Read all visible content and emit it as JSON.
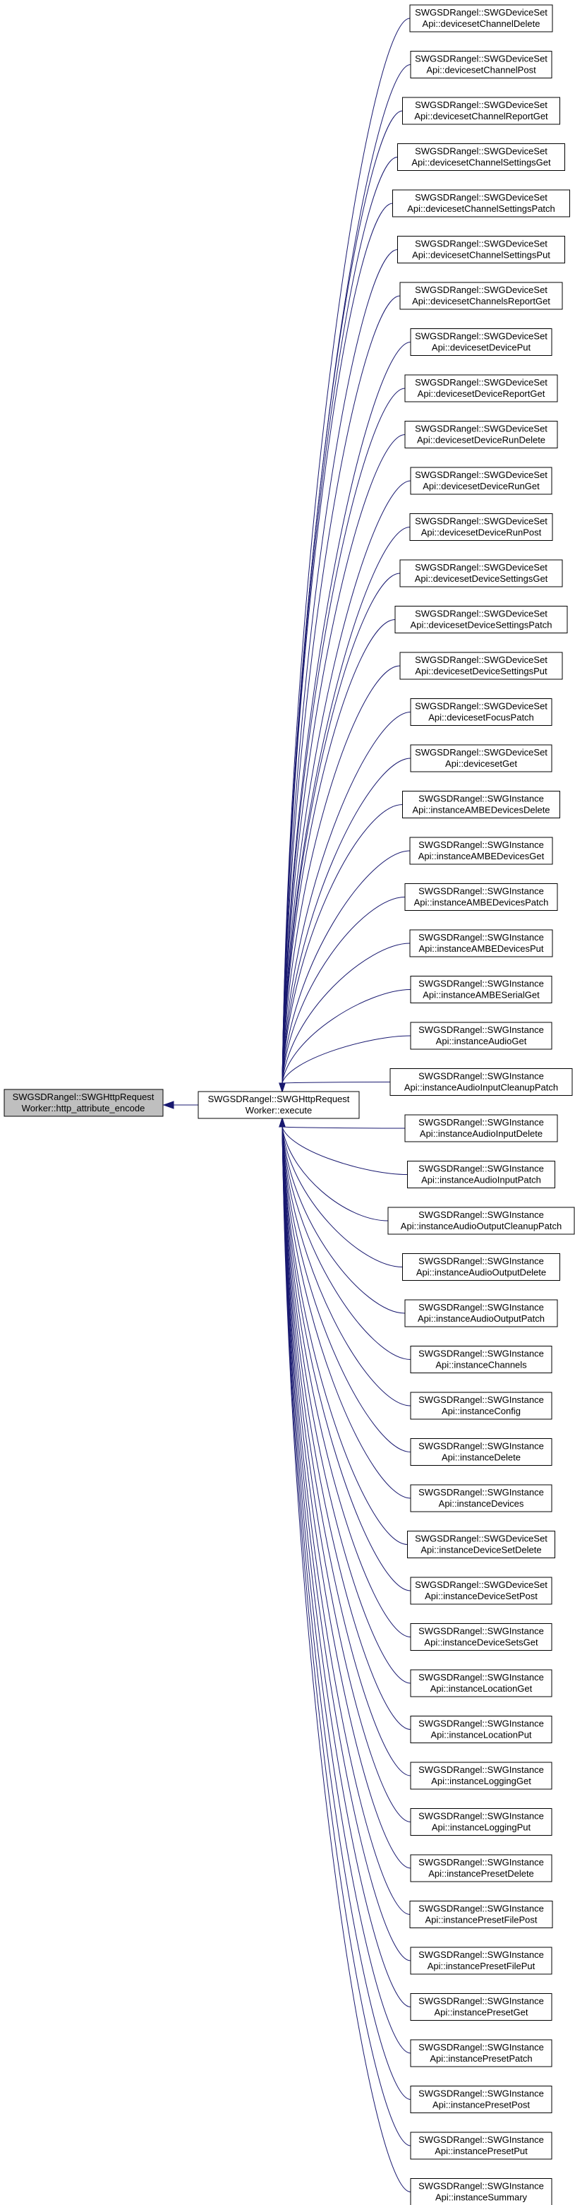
{
  "colors": {
    "edge": "#191970",
    "node_fill": "#ffffff",
    "highlight_fill": "#bfbfbf",
    "border": "#000000"
  },
  "focus_node": {
    "line1": "SWGSDRangel::SWGHttpRequest",
    "line2": "Worker::http_attribute_encode"
  },
  "center_node": {
    "line1": "SWGSDRangel::SWGHttpRequest",
    "line2": "Worker::execute"
  },
  "callers": [
    {
      "line1": "SWGSDRangel::SWGDeviceSet",
      "line2": "Api::devicesetChannelDelete"
    },
    {
      "line1": "SWGSDRangel::SWGDeviceSet",
      "line2": "Api::devicesetChannelPost"
    },
    {
      "line1": "SWGSDRangel::SWGDeviceSet",
      "line2": "Api::devicesetChannelReportGet"
    },
    {
      "line1": "SWGSDRangel::SWGDeviceSet",
      "line2": "Api::devicesetChannelSettingsGet"
    },
    {
      "line1": "SWGSDRangel::SWGDeviceSet",
      "line2": "Api::devicesetChannelSettingsPatch"
    },
    {
      "line1": "SWGSDRangel::SWGDeviceSet",
      "line2": "Api::devicesetChannelSettingsPut"
    },
    {
      "line1": "SWGSDRangel::SWGDeviceSet",
      "line2": "Api::devicesetChannelsReportGet"
    },
    {
      "line1": "SWGSDRangel::SWGDeviceSet",
      "line2": "Api::devicesetDevicePut"
    },
    {
      "line1": "SWGSDRangel::SWGDeviceSet",
      "line2": "Api::devicesetDeviceReportGet"
    },
    {
      "line1": "SWGSDRangel::SWGDeviceSet",
      "line2": "Api::devicesetDeviceRunDelete"
    },
    {
      "line1": "SWGSDRangel::SWGDeviceSet",
      "line2": "Api::devicesetDeviceRunGet"
    },
    {
      "line1": "SWGSDRangel::SWGDeviceSet",
      "line2": "Api::devicesetDeviceRunPost"
    },
    {
      "line1": "SWGSDRangel::SWGDeviceSet",
      "line2": "Api::devicesetDeviceSettingsGet"
    },
    {
      "line1": "SWGSDRangel::SWGDeviceSet",
      "line2": "Api::devicesetDeviceSettingsPatch"
    },
    {
      "line1": "SWGSDRangel::SWGDeviceSet",
      "line2": "Api::devicesetDeviceSettingsPut"
    },
    {
      "line1": "SWGSDRangel::SWGDeviceSet",
      "line2": "Api::devicesetFocusPatch"
    },
    {
      "line1": "SWGSDRangel::SWGDeviceSet",
      "line2": "Api::devicesetGet"
    },
    {
      "line1": "SWGSDRangel::SWGInstance",
      "line2": "Api::instanceAMBEDevicesDelete"
    },
    {
      "line1": "SWGSDRangel::SWGInstance",
      "line2": "Api::instanceAMBEDevicesGet"
    },
    {
      "line1": "SWGSDRangel::SWGInstance",
      "line2": "Api::instanceAMBEDevicesPatch"
    },
    {
      "line1": "SWGSDRangel::SWGInstance",
      "line2": "Api::instanceAMBEDevicesPut"
    },
    {
      "line1": "SWGSDRangel::SWGInstance",
      "line2": "Api::instanceAMBESerialGet"
    },
    {
      "line1": "SWGSDRangel::SWGInstance",
      "line2": "Api::instanceAudioGet"
    },
    {
      "line1": "SWGSDRangel::SWGInstance",
      "line2": "Api::instanceAudioInputCleanupPatch"
    },
    {
      "line1": "SWGSDRangel::SWGInstance",
      "line2": "Api::instanceAudioInputDelete"
    },
    {
      "line1": "SWGSDRangel::SWGInstance",
      "line2": "Api::instanceAudioInputPatch"
    },
    {
      "line1": "SWGSDRangel::SWGInstance",
      "line2": "Api::instanceAudioOutputCleanupPatch"
    },
    {
      "line1": "SWGSDRangel::SWGInstance",
      "line2": "Api::instanceAudioOutputDelete"
    },
    {
      "line1": "SWGSDRangel::SWGInstance",
      "line2": "Api::instanceAudioOutputPatch"
    },
    {
      "line1": "SWGSDRangel::SWGInstance",
      "line2": "Api::instanceChannels"
    },
    {
      "line1": "SWGSDRangel::SWGInstance",
      "line2": "Api::instanceConfig"
    },
    {
      "line1": "SWGSDRangel::SWGInstance",
      "line2": "Api::instanceDelete"
    },
    {
      "line1": "SWGSDRangel::SWGInstance",
      "line2": "Api::instanceDevices"
    },
    {
      "line1": "SWGSDRangel::SWGDeviceSet",
      "line2": "Api::instanceDeviceSetDelete"
    },
    {
      "line1": "SWGSDRangel::SWGDeviceSet",
      "line2": "Api::instanceDeviceSetPost"
    },
    {
      "line1": "SWGSDRangel::SWGInstance",
      "line2": "Api::instanceDeviceSetsGet"
    },
    {
      "line1": "SWGSDRangel::SWGInstance",
      "line2": "Api::instanceLocationGet"
    },
    {
      "line1": "SWGSDRangel::SWGInstance",
      "line2": "Api::instanceLocationPut"
    },
    {
      "line1": "SWGSDRangel::SWGInstance",
      "line2": "Api::instanceLoggingGet"
    },
    {
      "line1": "SWGSDRangel::SWGInstance",
      "line2": "Api::instanceLoggingPut"
    },
    {
      "line1": "SWGSDRangel::SWGInstance",
      "line2": "Api::instancePresetDelete"
    },
    {
      "line1": "SWGSDRangel::SWGInstance",
      "line2": "Api::instancePresetFilePost"
    },
    {
      "line1": "SWGSDRangel::SWGInstance",
      "line2": "Api::instancePresetFilePut"
    },
    {
      "line1": "SWGSDRangel::SWGInstance",
      "line2": "Api::instancePresetGet"
    },
    {
      "line1": "SWGSDRangel::SWGInstance",
      "line2": "Api::instancePresetPatch"
    },
    {
      "line1": "SWGSDRangel::SWGInstance",
      "line2": "Api::instancePresetPost"
    },
    {
      "line1": "SWGSDRangel::SWGInstance",
      "line2": "Api::instancePresetPut"
    },
    {
      "line1": "SWGSDRangel::SWGInstance",
      "line2": "Api::instanceSummary"
    }
  ]
}
